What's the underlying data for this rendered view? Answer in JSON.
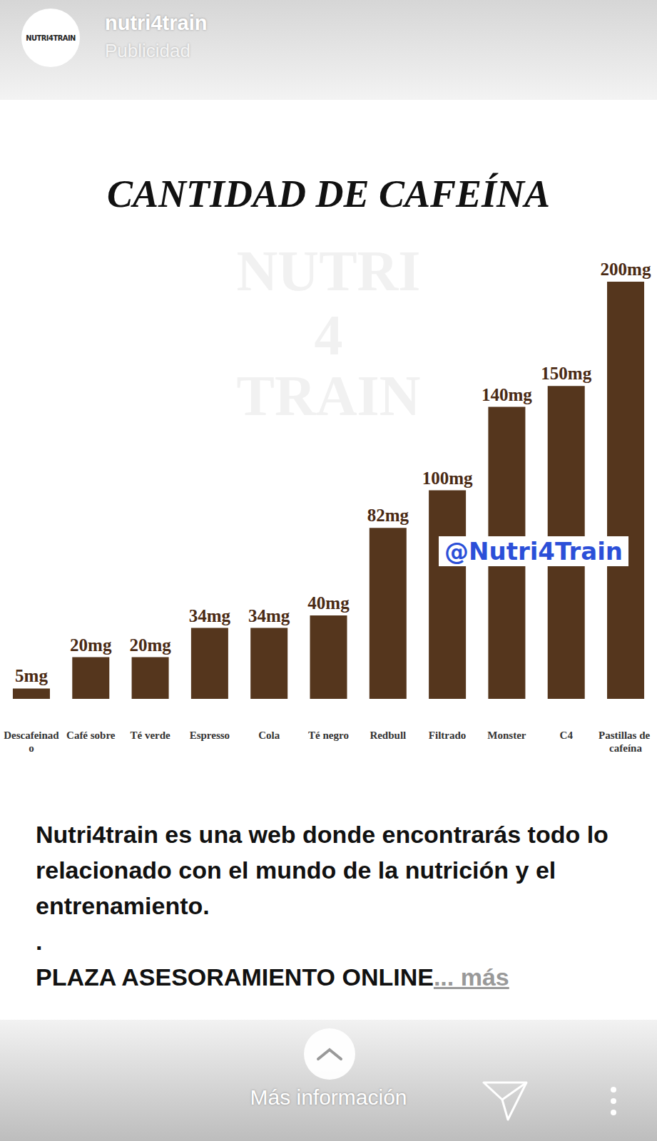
{
  "header": {
    "logo": "NUTRI4TRAIN",
    "account": "nutri4train",
    "label": "Publicidad"
  },
  "chart_data": {
    "type": "bar",
    "title": "CANTIDAD DE CAFEÍNA",
    "categories": [
      "Descafeinado",
      "Café sobre",
      "Té verde",
      "Espresso",
      "Cola",
      "Té negro",
      "Redbull",
      "Filtrado",
      "Monster",
      "C4",
      "Pastillas de cafeína"
    ],
    "values": [
      5,
      20,
      20,
      34,
      34,
      40,
      82,
      100,
      140,
      150,
      200
    ],
    "value_labels": [
      "5mg",
      "20mg",
      "20mg",
      "34mg",
      "34mg",
      "40mg",
      "82mg",
      "100mg",
      "140mg",
      "150mg",
      "200mg"
    ],
    "color": "#55361d",
    "ylim": [
      0,
      200
    ],
    "grid": false,
    "data_labels": true,
    "tick_labels": "x",
    "annotations": [
      "@Nutri4Train"
    ],
    "watermark": [
      "NUTRI",
      "4",
      "TRAIN"
    ]
  },
  "caption": {
    "lines": [
      "Nutri4train es una web donde encontrarás todo lo relacionado con el mundo de la nutrición y el entrenamiento.",
      ".",
      "PLAZA ASESORAMIENTO ONLINE"
    ],
    "ellipsis": "...",
    "more": "más"
  },
  "footer": {
    "button": "Más información"
  }
}
